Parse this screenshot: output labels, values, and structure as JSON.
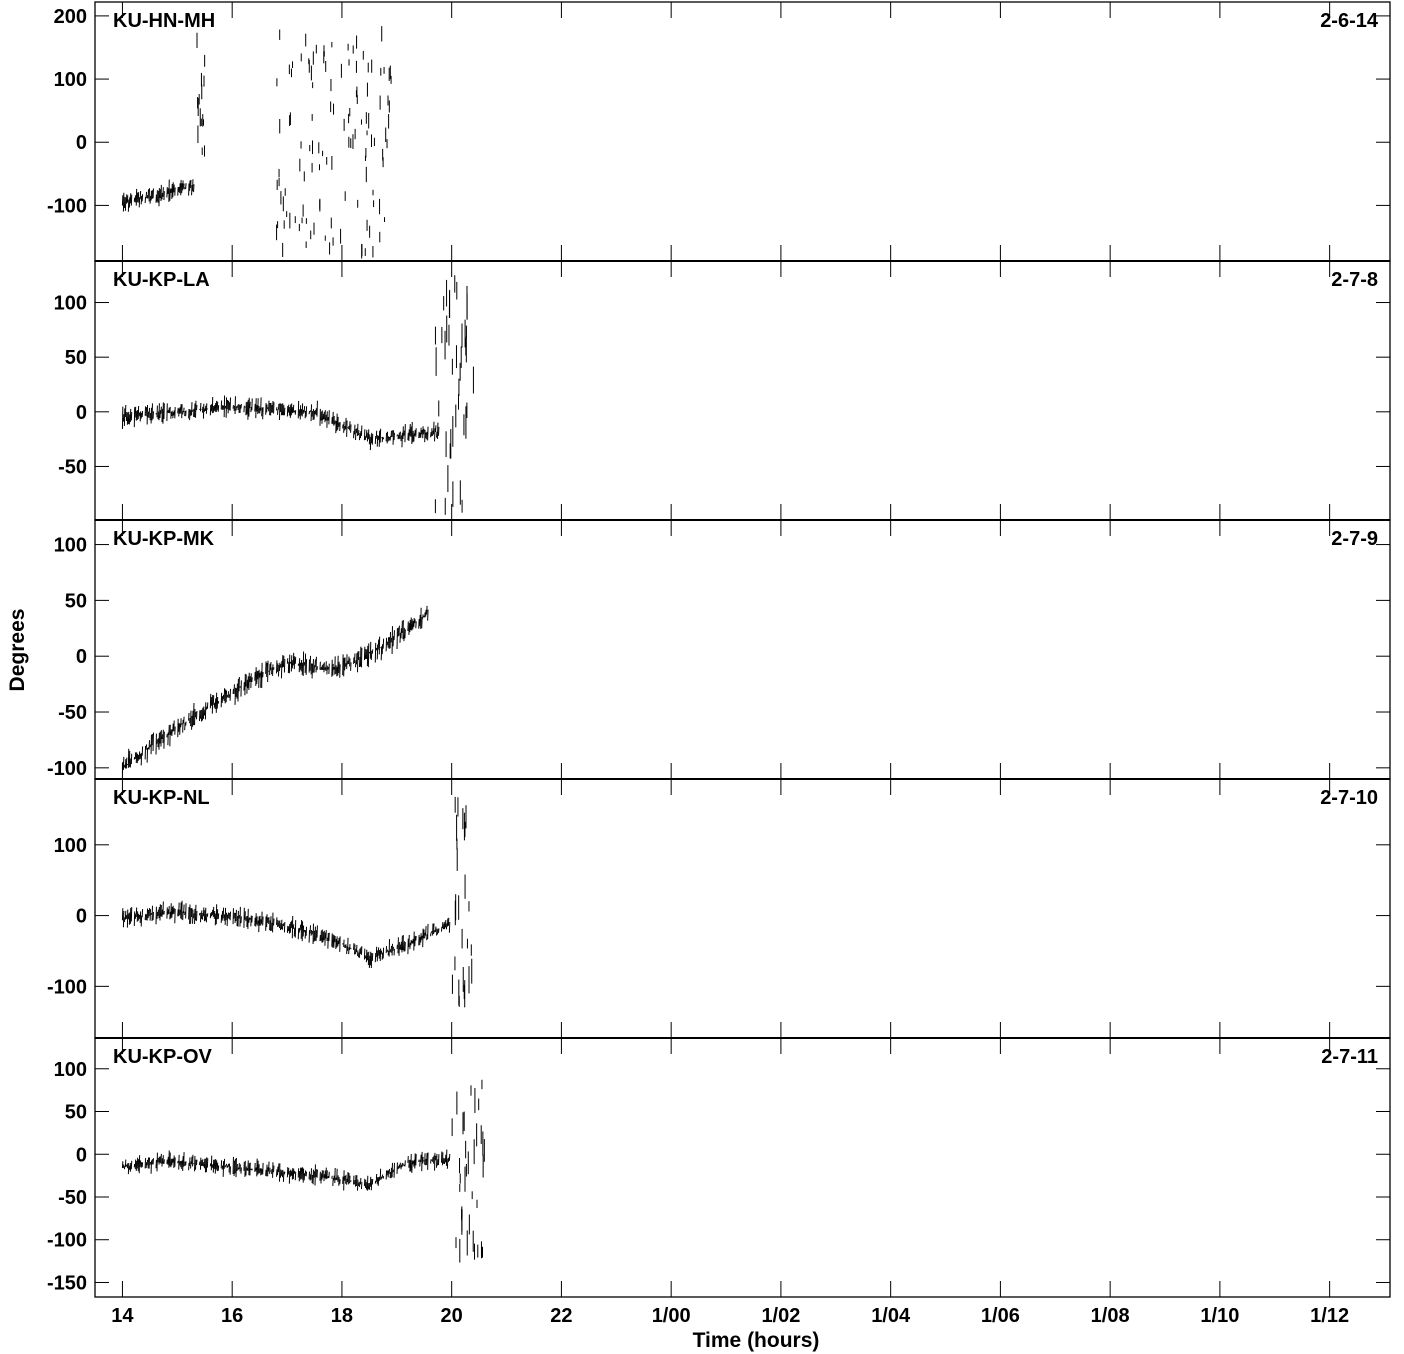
{
  "chart_data": {
    "type": "scatter",
    "ylabel": "Degrees",
    "xlabel": "Time (hours)",
    "x_ticks": [
      "14",
      "16",
      "18",
      "20",
      "22",
      "1/00",
      "1/02",
      "1/04",
      "1/06",
      "1/08",
      "1/10",
      "1/12"
    ],
    "x_tick_hours": [
      14,
      16,
      18,
      20,
      22,
      24,
      26,
      28,
      30,
      32,
      34,
      36
    ],
    "xlim_hours": [
      13.5,
      37.1
    ],
    "grid": false,
    "panels": [
      {
        "baseline": "KU-HN-MH",
        "code": "2-6-14",
        "ylim": [
          -188,
          222
        ],
        "yticks": [
          200,
          100,
          0,
          -100
        ],
        "series": [
          {
            "type": "dense",
            "x": [
              14.0,
              15.3
            ],
            "y": [
              -95,
              -70
            ],
            "spread": 22
          },
          {
            "type": "sparse",
            "x": [
              15.3,
              15.5
            ],
            "y": [
              -20,
              170
            ],
            "spread": 30
          },
          {
            "type": "sparse",
            "x": [
              16.8,
              18.9
            ],
            "y": [
              -180,
              185
            ],
            "spread": 25
          }
        ]
      },
      {
        "baseline": "KU-KP-LA",
        "code": "2-7-8",
        "ylim": [
          -99,
          138
        ],
        "yticks": [
          100,
          50,
          0,
          -50
        ],
        "series": [
          {
            "type": "dense",
            "x": [
              14.0,
              16.0,
              17.5,
              18.0,
              18.5,
              19.8
            ],
            "y": [
              -5,
              5,
              0,
              -12,
              -25,
              -18
            ],
            "spread": 12
          },
          {
            "type": "sparse",
            "x": [
              19.7,
              20.4
            ],
            "y": [
              -90,
              120
            ],
            "spread": 30
          }
        ]
      },
      {
        "baseline": "KU-KP-MK",
        "code": "2-7-9",
        "ylim": [
          -110,
          122
        ],
        "yticks": [
          100,
          50,
          0,
          -50,
          -100
        ],
        "series": [
          {
            "type": "dense",
            "x": [
              14.0,
              14.8,
              15.6,
              16.4,
              17.0,
              17.8,
              18.2,
              18.8,
              19.6
            ],
            "y": [
              -100,
              -70,
              -45,
              -20,
              -5,
              -12,
              -5,
              10,
              40
            ],
            "spread": 14
          }
        ]
      },
      {
        "baseline": "KU-KP-NL",
        "code": "2-7-10",
        "ylim": [
          -173,
          193
        ],
        "yticks": [
          100,
          0,
          -100
        ],
        "series": [
          {
            "type": "dense",
            "x": [
              14.0,
              14.7,
              16.0,
              17.3,
              18.0,
              18.5,
              19.2,
              20.0
            ],
            "y": [
              -5,
              5,
              0,
              -20,
              -40,
              -60,
              -40,
              -10
            ],
            "spread": 18
          },
          {
            "type": "sparse",
            "x": [
              20.0,
              20.4
            ],
            "y": [
              -150,
              170
            ],
            "spread": 40
          }
        ]
      },
      {
        "baseline": "KU-KP-OV",
        "code": "2-7-11",
        "ylim": [
          -167,
          136
        ],
        "yticks": [
          100,
          50,
          0,
          -50,
          -100,
          -150
        ],
        "series": [
          {
            "type": "dense",
            "x": [
              14.0,
              14.7,
              16.0,
              17.5,
              18.0,
              18.5,
              19.2,
              20.0
            ],
            "y": [
              -15,
              -8,
              -15,
              -25,
              -30,
              -35,
              -10,
              -5
            ],
            "spread": 14
          },
          {
            "type": "sparse",
            "x": [
              20.0,
              20.6
            ],
            "y": [
              -120,
              100
            ],
            "spread": 30
          }
        ]
      }
    ]
  }
}
